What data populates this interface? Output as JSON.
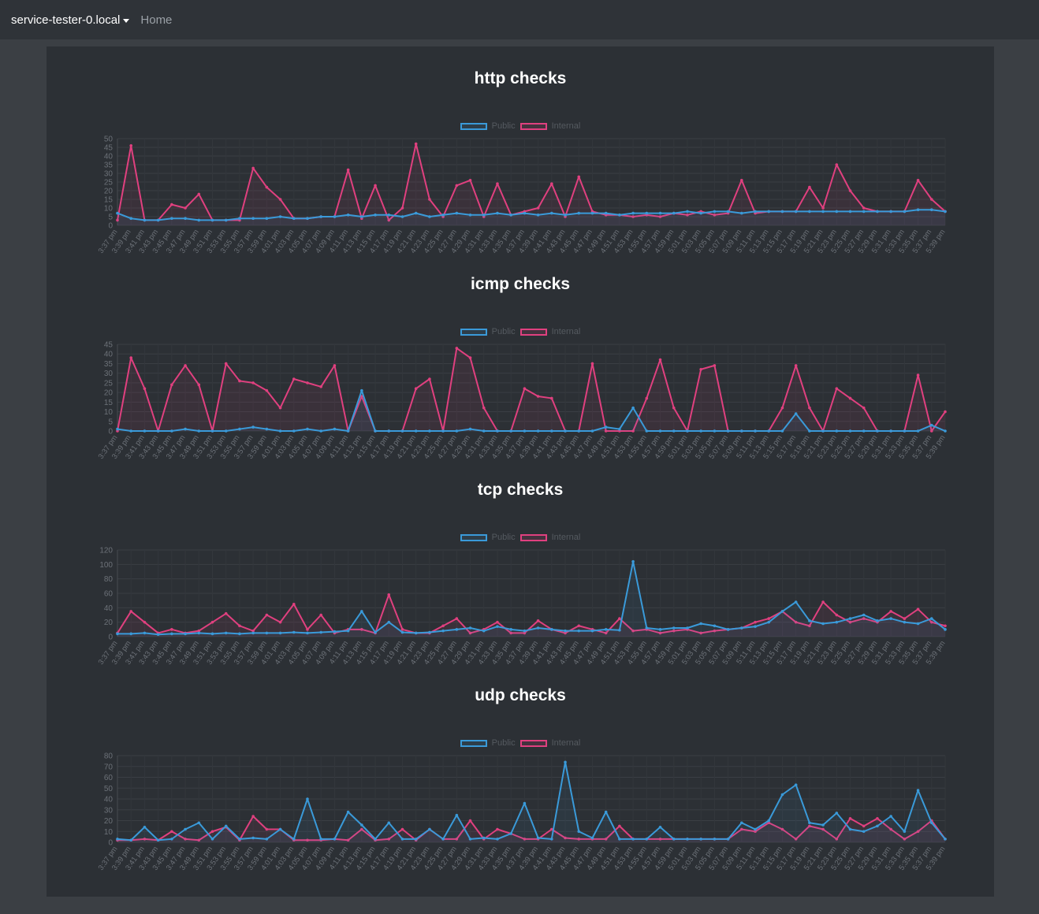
{
  "navbar": {
    "brand": "service-tester-0.local",
    "home": "Home"
  },
  "colors": {
    "public": "#3a9ad9",
    "internal": "#e0407f"
  },
  "legend": {
    "public": "Public",
    "internal": "Internal"
  },
  "chart_data": [
    {
      "type": "line",
      "title": "http checks",
      "ylim": [
        0,
        50
      ],
      "yticks": [
        "0",
        "5",
        "10",
        "15",
        "20",
        "25",
        "30",
        "35",
        "40",
        "45",
        "50"
      ],
      "categories": [
        "3:37 pm",
        "3:39 pm",
        "3:41 pm",
        "3:43 pm",
        "3:45 pm",
        "3:47 pm",
        "3:49 pm",
        "3:51 pm",
        "3:53 pm",
        "3:55 pm",
        "3:57 pm",
        "3:59 pm",
        "4:01 pm",
        "4:03 pm",
        "4:05 pm",
        "4:07 pm",
        "4:09 pm",
        "4:11 pm",
        "4:13 pm",
        "4:15 pm",
        "4:17 pm",
        "4:19 pm",
        "4:21 pm",
        "4:23 pm",
        "4:25 pm",
        "4:27 pm",
        "4:29 pm",
        "4:31 pm",
        "4:33 pm",
        "4:35 pm",
        "4:37 pm",
        "4:39 pm",
        "4:41 pm",
        "4:43 pm",
        "4:45 pm",
        "4:47 pm",
        "4:49 pm",
        "4:51 pm",
        "4:53 pm",
        "4:55 pm",
        "4:57 pm",
        "4:59 pm",
        "5:01 pm",
        "5:03 pm",
        "5:05 pm",
        "5:07 pm",
        "5:09 pm",
        "5:11 pm",
        "5:13 pm",
        "5:15 pm",
        "5:17 pm",
        "5:19 pm",
        "5:21 pm",
        "5:23 pm",
        "5:25 pm",
        "5:27 pm",
        "5:29 pm",
        "5:31 pm",
        "5:33 pm",
        "5:35 pm",
        "5:37 pm",
        "5:39 pm"
      ],
      "series": [
        {
          "name": "Public",
          "values": [
            7,
            4,
            3,
            3,
            4,
            4,
            3,
            3,
            3,
            4,
            4,
            4,
            5,
            4,
            4,
            5,
            5,
            6,
            5,
            6,
            6,
            5,
            7,
            5,
            6,
            7,
            6,
            6,
            7,
            6,
            7,
            6,
            7,
            6,
            7,
            7,
            7,
            6,
            7,
            7,
            7,
            7,
            8,
            7,
            8,
            8,
            7,
            8,
            8,
            8,
            8,
            8,
            8,
            8,
            8,
            8,
            8,
            8,
            8,
            9,
            9,
            8
          ]
        },
        {
          "name": "Internal",
          "values": [
            3,
            46,
            3,
            3,
            12,
            10,
            18,
            3,
            3,
            3,
            33,
            22,
            15,
            4,
            4,
            5,
            5,
            32,
            4,
            23,
            3,
            10,
            47,
            15,
            5,
            23,
            26,
            5,
            24,
            6,
            8,
            10,
            24,
            5,
            28,
            8,
            6,
            6,
            5,
            6,
            5,
            7,
            6,
            8,
            6,
            7,
            26,
            7,
            8,
            8,
            8,
            22,
            10,
            35,
            20,
            10,
            8,
            8,
            8,
            26,
            15,
            8
          ]
        }
      ]
    },
    {
      "type": "line",
      "title": "icmp checks",
      "ylim": [
        0,
        45
      ],
      "yticks": [
        "0",
        "5",
        "10",
        "15",
        "20",
        "25",
        "30",
        "35",
        "40",
        "45"
      ],
      "categories": [
        "3:37 pm",
        "3:39 pm",
        "3:41 pm",
        "3:43 pm",
        "3:45 pm",
        "3:47 pm",
        "3:49 pm",
        "3:51 pm",
        "3:53 pm",
        "3:55 pm",
        "3:57 pm",
        "3:59 pm",
        "4:01 pm",
        "4:03 pm",
        "4:05 pm",
        "4:07 pm",
        "4:09 pm",
        "4:11 pm",
        "4:13 pm",
        "4:15 pm",
        "4:17 pm",
        "4:19 pm",
        "4:21 pm",
        "4:23 pm",
        "4:25 pm",
        "4:27 pm",
        "4:29 pm",
        "4:31 pm",
        "4:33 pm",
        "4:35 pm",
        "4:37 pm",
        "4:39 pm",
        "4:41 pm",
        "4:43 pm",
        "4:45 pm",
        "4:47 pm",
        "4:49 pm",
        "4:51 pm",
        "4:53 pm",
        "4:55 pm",
        "4:57 pm",
        "4:59 pm",
        "5:01 pm",
        "5:03 pm",
        "5:05 pm",
        "5:07 pm",
        "5:09 pm",
        "5:11 pm",
        "5:13 pm",
        "5:15 pm",
        "5:17 pm",
        "5:19 pm",
        "5:21 pm",
        "5:23 pm",
        "5:25 pm",
        "5:27 pm",
        "5:29 pm",
        "5:31 pm",
        "5:33 pm",
        "5:35 pm",
        "5:37 pm",
        "5:39 pm"
      ],
      "series": [
        {
          "name": "Public",
          "values": [
            1,
            0,
            0,
            0,
            0,
            1,
            0,
            0,
            0,
            1,
            2,
            1,
            0,
            0,
            1,
            0,
            1,
            0,
            21,
            0,
            0,
            0,
            0,
            0,
            0,
            0,
            1,
            0,
            0,
            0,
            0,
            0,
            0,
            0,
            0,
            0,
            2,
            1,
            12,
            0,
            0,
            0,
            0,
            0,
            0,
            0,
            0,
            0,
            0,
            0,
            9,
            0,
            0,
            0,
            0,
            0,
            0,
            0,
            0,
            0,
            3,
            0
          ]
        },
        {
          "name": "Internal",
          "values": [
            0,
            38,
            22,
            0,
            24,
            34,
            24,
            0,
            35,
            26,
            25,
            21,
            12,
            27,
            25,
            23,
            34,
            0,
            18,
            0,
            0,
            0,
            22,
            27,
            0,
            43,
            38,
            12,
            0,
            0,
            22,
            18,
            17,
            0,
            0,
            35,
            0,
            0,
            0,
            17,
            37,
            12,
            0,
            32,
            34,
            0,
            0,
            0,
            0,
            12,
            34,
            12,
            0,
            22,
            17,
            12,
            0,
            0,
            0,
            29,
            0,
            10
          ]
        }
      ]
    },
    {
      "type": "line",
      "title": "tcp checks",
      "ylim": [
        0,
        120
      ],
      "yticks": [
        "0",
        "20",
        "40",
        "60",
        "80",
        "100",
        "120"
      ],
      "categories": [
        "3:37 pm",
        "3:39 pm",
        "3:41 pm",
        "3:43 pm",
        "3:45 pm",
        "3:47 pm",
        "3:49 pm",
        "3:51 pm",
        "3:53 pm",
        "3:55 pm",
        "3:57 pm",
        "3:59 pm",
        "4:01 pm",
        "4:03 pm",
        "4:05 pm",
        "4:07 pm",
        "4:09 pm",
        "4:11 pm",
        "4:13 pm",
        "4:15 pm",
        "4:17 pm",
        "4:19 pm",
        "4:21 pm",
        "4:23 pm",
        "4:25 pm",
        "4:27 pm",
        "4:29 pm",
        "4:31 pm",
        "4:33 pm",
        "4:35 pm",
        "4:37 pm",
        "4:39 pm",
        "4:41 pm",
        "4:43 pm",
        "4:45 pm",
        "4:47 pm",
        "4:49 pm",
        "4:51 pm",
        "4:53 pm",
        "4:55 pm",
        "4:57 pm",
        "4:59 pm",
        "5:01 pm",
        "5:03 pm",
        "5:05 pm",
        "5:07 pm",
        "5:09 pm",
        "5:11 pm",
        "5:13 pm",
        "5:15 pm",
        "5:17 pm",
        "5:19 pm",
        "5:21 pm",
        "5:23 pm",
        "5:25 pm",
        "5:27 pm",
        "5:29 pm",
        "5:31 pm",
        "5:33 pm",
        "5:35 pm",
        "5:37 pm",
        "5:39 pm"
      ],
      "series": [
        {
          "name": "Public",
          "values": [
            4,
            4,
            5,
            3,
            4,
            4,
            5,
            4,
            5,
            4,
            5,
            5,
            5,
            6,
            5,
            6,
            7,
            8,
            35,
            6,
            20,
            6,
            5,
            6,
            8,
            10,
            12,
            8,
            14,
            10,
            8,
            12,
            10,
            8,
            8,
            8,
            10,
            9,
            104,
            12,
            10,
            12,
            12,
            18,
            15,
            10,
            12,
            14,
            20,
            35,
            48,
            22,
            18,
            20,
            25,
            30,
            22,
            25,
            20,
            18,
            25,
            10
          ]
        },
        {
          "name": "Internal",
          "values": [
            5,
            35,
            20,
            5,
            10,
            5,
            8,
            20,
            32,
            15,
            8,
            30,
            20,
            45,
            10,
            30,
            5,
            10,
            10,
            5,
            58,
            10,
            5,
            5,
            15,
            25,
            5,
            10,
            20,
            5,
            5,
            22,
            10,
            5,
            15,
            10,
            5,
            25,
            8,
            10,
            5,
            8,
            10,
            5,
            8,
            10,
            12,
            20,
            25,
            35,
            20,
            15,
            48,
            30,
            20,
            25,
            20,
            35,
            25,
            38,
            20,
            15
          ]
        }
      ]
    },
    {
      "type": "line",
      "title": "udp checks",
      "ylim": [
        0,
        80
      ],
      "yticks": [
        "0",
        "10",
        "20",
        "30",
        "40",
        "50",
        "60",
        "70",
        "80"
      ],
      "categories": [
        "3:37 pm",
        "3:39 pm",
        "3:41 pm",
        "3:43 pm",
        "3:45 pm",
        "3:47 pm",
        "3:49 pm",
        "3:51 pm",
        "3:53 pm",
        "3:55 pm",
        "3:57 pm",
        "3:59 pm",
        "4:01 pm",
        "4:03 pm",
        "4:05 pm",
        "4:07 pm",
        "4:09 pm",
        "4:11 pm",
        "4:13 pm",
        "4:15 pm",
        "4:17 pm",
        "4:19 pm",
        "4:21 pm",
        "4:23 pm",
        "4:25 pm",
        "4:27 pm",
        "4:29 pm",
        "4:31 pm",
        "4:33 pm",
        "4:35 pm",
        "4:37 pm",
        "4:39 pm",
        "4:41 pm",
        "4:43 pm",
        "4:45 pm",
        "4:47 pm",
        "4:49 pm",
        "4:51 pm",
        "4:53 pm",
        "4:55 pm",
        "4:57 pm",
        "4:59 pm",
        "5:01 pm",
        "5:03 pm",
        "5:05 pm",
        "5:07 pm",
        "5:09 pm",
        "5:11 pm",
        "5:13 pm",
        "5:15 pm",
        "5:17 pm",
        "5:19 pm",
        "5:21 pm",
        "5:23 pm",
        "5:25 pm",
        "5:27 pm",
        "5:29 pm",
        "5:31 pm",
        "5:33 pm",
        "5:35 pm",
        "5:37 pm",
        "5:39 pm"
      ],
      "series": [
        {
          "name": "Public",
          "values": [
            3,
            2,
            14,
            2,
            3,
            12,
            18,
            3,
            15,
            3,
            4,
            3,
            12,
            3,
            40,
            3,
            3,
            28,
            16,
            3,
            18,
            3,
            3,
            12,
            3,
            25,
            3,
            4,
            3,
            8,
            36,
            4,
            3,
            74,
            10,
            4,
            28,
            3,
            3,
            3,
            14,
            3,
            3,
            3,
            3,
            3,
            18,
            12,
            20,
            44,
            53,
            18,
            16,
            27,
            12,
            10,
            15,
            24,
            10,
            48,
            18,
            3
          ]
        },
        {
          "name": "Internal",
          "values": [
            2,
            2,
            3,
            2,
            10,
            3,
            2,
            10,
            14,
            2,
            24,
            12,
            12,
            2,
            2,
            2,
            3,
            2,
            12,
            2,
            3,
            12,
            2,
            12,
            3,
            3,
            20,
            3,
            12,
            8,
            3,
            3,
            12,
            4,
            3,
            3,
            3,
            15,
            3,
            3,
            3,
            3,
            3,
            3,
            3,
            3,
            12,
            10,
            18,
            12,
            3,
            15,
            12,
            3,
            22,
            15,
            22,
            12,
            3,
            10,
            20,
            3
          ]
        }
      ]
    }
  ]
}
